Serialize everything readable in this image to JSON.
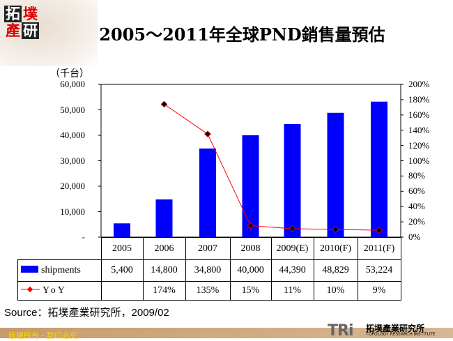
{
  "logo": {
    "chars": [
      "拓",
      "墣",
      "產",
      "研"
    ]
  },
  "title": "2005～2011年全球PND銷售量預估",
  "chart_data": {
    "type": "bar+line",
    "title": "2005～2011年全球PND銷售量預估",
    "ylabel": "（千台）",
    "categories": [
      "2005",
      "2006",
      "2007",
      "2008",
      "2009(E)",
      "2010(F)",
      "2011(F)"
    ],
    "y_left": {
      "range": [
        0,
        60000
      ],
      "ticks": [
        "-",
        "10,000",
        "20,000",
        "30,000",
        "40,000",
        "50,000",
        "60,000"
      ]
    },
    "y_right": {
      "range": [
        0,
        200
      ],
      "ticks": [
        "0%",
        "20%",
        "40%",
        "60%",
        "80%",
        "100%",
        "120%",
        "140%",
        "160%",
        "180%",
        "200%"
      ]
    },
    "series": [
      {
        "name": "shipments",
        "type": "bar",
        "axis": "left",
        "color": "#0000ff",
        "values": [
          5400,
          14800,
          34800,
          40000,
          44390,
          48829,
          53224
        ],
        "labels": [
          "5,400",
          "14,800",
          "34,800",
          "40,000",
          "44,390",
          "48,829",
          "53,224"
        ]
      },
      {
        "name": "YoY",
        "type": "line",
        "axis": "right",
        "color": "#ff0000",
        "marker_color": "#000000",
        "values": [
          null,
          174,
          135,
          15,
          11,
          10,
          9
        ],
        "labels": [
          "",
          "174%",
          "135%",
          "15%",
          "11%",
          "10%",
          "9%"
        ]
      }
    ],
    "grid": false,
    "legend": "data-table"
  },
  "source": "Source：拓墣產業研究所，2009/02",
  "footer": {
    "copyright": "版權所有・翻印必究",
    "brand": "TRi",
    "brand_cn": "拓墣產業研究所",
    "brand_en": "TOPOLOGY RESEARCH INSTITUTE"
  }
}
